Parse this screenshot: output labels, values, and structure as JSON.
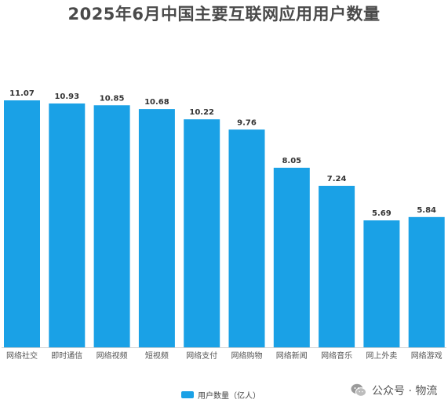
{
  "chart_data": {
    "type": "bar",
    "title": "2025年6月中国主要互联网应用用户数量",
    "categories": [
      "网络社交",
      "即时通信",
      "网络视频",
      "短视频",
      "网络支付",
      "网络购物",
      "网络新闻",
      "网络音乐",
      "网上外卖",
      "网络游戏"
    ],
    "series": [
      {
        "name": "用户数量（亿人）",
        "values": [
          11.07,
          10.93,
          10.85,
          10.68,
          10.22,
          9.76,
          8.05,
          7.24,
          5.69,
          5.84
        ],
        "labels": [
          "11.07",
          "10.93",
          "10.85",
          "10.68",
          "10.22",
          "9.76",
          "8.05",
          "7.24",
          "5.69",
          "5.84"
        ]
      }
    ],
    "ylim": [
      0,
      11.07
    ],
    "grid": false,
    "legend": "bottom-center",
    "xlabel": "",
    "ylabel": ""
  },
  "colors": {
    "bar": "#1aa1e6",
    "title": "#4a4a4a",
    "label": "#333333",
    "tick": "#555555"
  },
  "watermark": {
    "icon": "wechat-icon",
    "text": "公众号 · 物流"
  }
}
